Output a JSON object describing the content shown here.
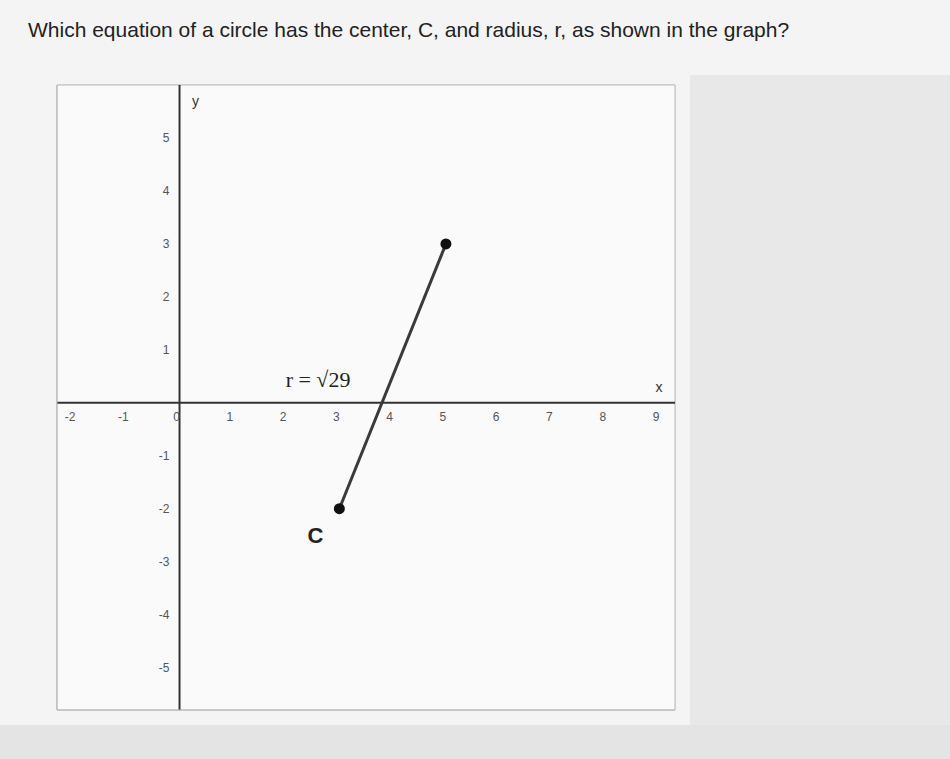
{
  "chart_data": {
    "type": "line",
    "title": "Which equation of a circle has the center, C, and radius, r, as shown in the graph?",
    "xlabel": "x",
    "ylabel": "y",
    "x": [
      3,
      5
    ],
    "values": [
      -2,
      3
    ],
    "color": "#3a3a3a",
    "marker": "circle",
    "xlim": [
      -2.3,
      9.3
    ],
    "ylim": [
      -5.8,
      6
    ],
    "xticks": [
      -2,
      -1,
      0,
      1,
      2,
      3,
      4,
      5,
      6,
      7,
      8,
      9
    ],
    "yticks": [
      -5,
      -4,
      -3,
      -2,
      -1,
      1,
      2,
      3,
      4,
      5
    ],
    "grid": true,
    "annotations": [
      {
        "text": "r = √29",
        "x": 2.6,
        "y": 0.45
      },
      {
        "text": "C",
        "x": 2.55,
        "y": -2.5
      }
    ]
  }
}
